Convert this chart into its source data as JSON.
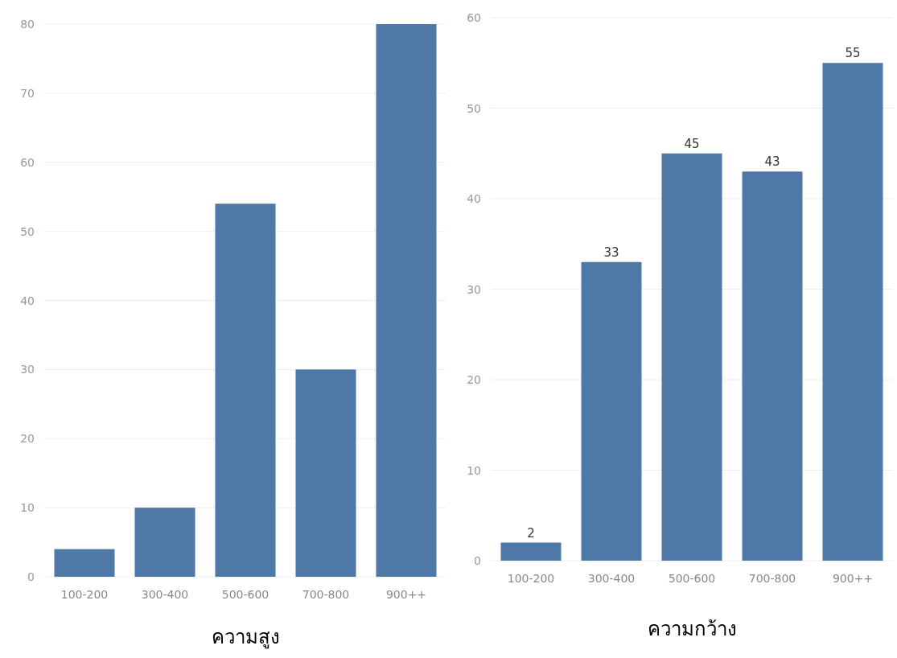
{
  "chart_data": [
    {
      "type": "bar",
      "xlabel": "ความสูง",
      "categories": [
        "100-200",
        "300-400",
        "500-600",
        "700-800",
        "900++"
      ],
      "values": [
        4,
        10,
        54,
        30,
        80
      ],
      "color": "#4e79a7",
      "ylim": [
        0,
        80
      ],
      "yticks": [
        0,
        10,
        20,
        30,
        40,
        50,
        60,
        70,
        80
      ],
      "grid": "y"
    },
    {
      "type": "bar",
      "xlabel": "ความกว้าง",
      "categories": [
        "100-200",
        "300-400",
        "500-600",
        "700-800",
        "900++"
      ],
      "values": [
        2,
        33,
        45,
        43,
        55
      ],
      "color": "#4e79a7",
      "ylim": [
        0,
        60
      ],
      "yticks": [
        0,
        10,
        20,
        30,
        40,
        50,
        60
      ],
      "grid": "y",
      "data_labels": true
    }
  ]
}
